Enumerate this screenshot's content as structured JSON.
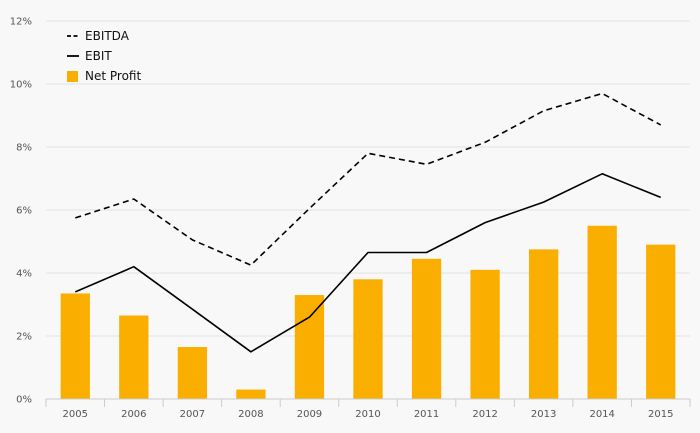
{
  "chart_data": {
    "type": "bar",
    "categories": [
      "2005",
      "2006",
      "2007",
      "2008",
      "2009",
      "2010",
      "2011",
      "2012",
      "2013",
      "2014",
      "2015"
    ],
    "ylim": [
      0,
      12
    ],
    "y_ticks": [
      0,
      2,
      4,
      6,
      8,
      10,
      12
    ],
    "y_tick_labels": [
      "0%",
      "2%",
      "4%",
      "6%",
      "8%",
      "10%",
      "12%"
    ],
    "grid": true,
    "legend_position": "top-left",
    "series": [
      {
        "name": "EBITDA",
        "type": "line",
        "style": "dashed",
        "color": "#000000",
        "values": [
          5.75,
          6.35,
          5.05,
          4.25,
          6.05,
          7.8,
          7.45,
          8.15,
          9.15,
          9.7,
          8.7
        ]
      },
      {
        "name": "EBIT",
        "type": "line",
        "style": "solid",
        "color": "#000000",
        "values": [
          3.4,
          4.2,
          2.85,
          1.5,
          2.6,
          4.65,
          4.65,
          5.6,
          6.25,
          7.15,
          6.4
        ]
      },
      {
        "name": "Net Profit",
        "type": "bar",
        "color": "#f9ae00",
        "values": [
          3.35,
          2.65,
          1.65,
          0.3,
          3.3,
          3.8,
          4.45,
          4.1,
          4.75,
          5.5,
          4.9
        ]
      }
    ]
  }
}
